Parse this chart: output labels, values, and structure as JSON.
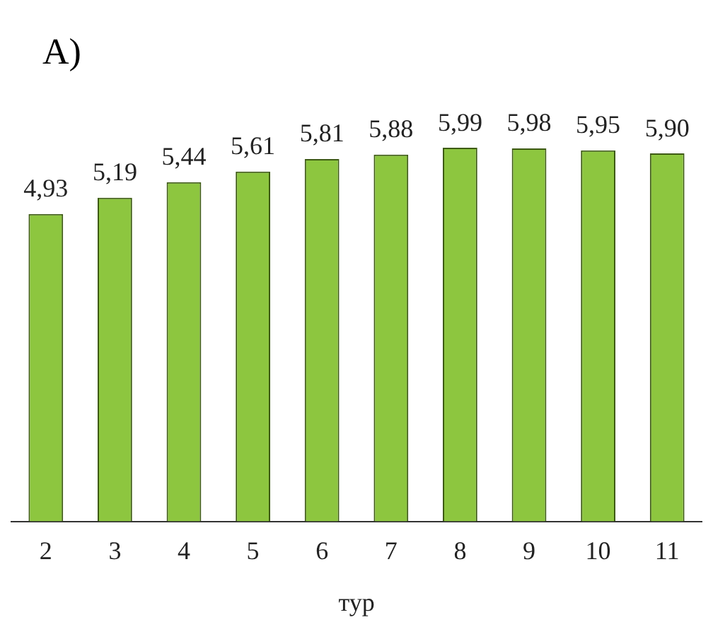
{
  "chart_data": {
    "type": "bar",
    "title": "A)",
    "xlabel": "тур",
    "categories": [
      "2",
      "3",
      "4",
      "5",
      "6",
      "7",
      "8",
      "9",
      "10",
      "11"
    ],
    "values": [
      4.93,
      5.19,
      5.44,
      5.61,
      5.81,
      5.88,
      5.99,
      5.98,
      5.95,
      5.9
    ],
    "value_labels": [
      "4,93",
      "5,19",
      "5,44",
      "5,61",
      "5,81",
      "5,88",
      "5,99",
      "5,98",
      "5,95",
      "5,90"
    ],
    "color": "#8dc63f",
    "grid": false,
    "legend": false
  }
}
